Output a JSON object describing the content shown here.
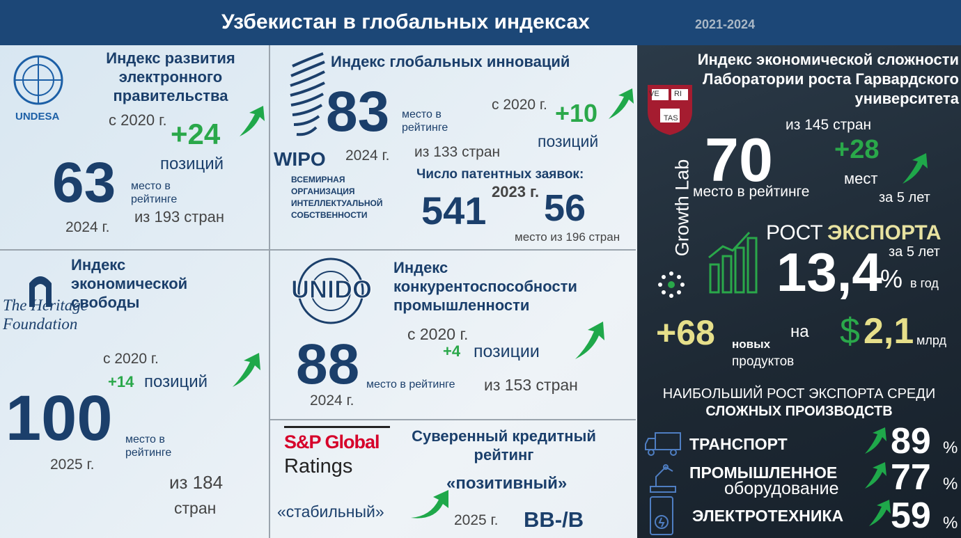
{
  "header": {
    "title": "Узбекистан в глобальных индексах",
    "period": "2021-2024"
  },
  "egov": {
    "logo": "UNDESA",
    "title": "Индекс развития электронного правительства",
    "since": "с 2020 г.",
    "change": "+24",
    "change_unit": "позиций",
    "rank": 63,
    "rank_label": "место в рейтинге",
    "year": "2024 г.",
    "of": "из 193 стран"
  },
  "innovation": {
    "logo": "WIPO",
    "logo_caption": "ВСЕМИРНАЯ ОРГАНИЗАЦИЯ ИНТЕЛЛЕКТУАЛЬНОЙ СОБСТВЕННОСТИ",
    "title": "Индекс глобальных инноваций",
    "rank": 83,
    "rank_label": "место в рейтинге",
    "year": "2024 г.",
    "of": "из 133 стран",
    "since": "с 2020 г.",
    "change": "+10",
    "change_unit": "позиций",
    "patents": {
      "title": "Число патентных заявок:",
      "count": 541,
      "year": "2023 г.",
      "rank": 56,
      "rank_label": "место из 196 стран"
    }
  },
  "freedom": {
    "logo": "The Heritage Foundation",
    "title": "Индекс экономической свободы",
    "since": "с 2020 г.",
    "change": "+14",
    "change_unit": "позиций",
    "rank": 100,
    "rank_label": "место в рейтинге",
    "year": "2025 г.",
    "of_prefix": "из 184",
    "of_suffix": "стран"
  },
  "industry": {
    "logo": "UNIDO",
    "title": "Индекс конкурентоспособности промышленности",
    "since": "с 2020 г.",
    "change": "+4",
    "change_unit": "позиции",
    "rank": 88,
    "rank_label": "место в рейтинге",
    "year": "2024 г.",
    "of": "из 153 стран"
  },
  "credit": {
    "logo_top": "S&P Global",
    "logo_bottom": "Ratings",
    "title": "Суверенный кредитный рейтинг",
    "from": "«стабильный»",
    "to": "«позитивный»",
    "year": "2025 г.",
    "rating": "BB-/B"
  },
  "complexity": {
    "title": "Индекс экономической сложности Лаборатории роста Гарвардского университета",
    "shield": [
      "VE",
      "RI",
      "TAS"
    ],
    "lab": "Growth Lab",
    "of": "из 145 стран",
    "rank": 70,
    "rank_label": "место в рейтинге",
    "change": "+28",
    "change_unit": "мест",
    "change_period": "за 5 лет",
    "export_label_a": "РОСТ",
    "export_label_b": "ЭКСПОРТА",
    "export_period": "за 5 лет",
    "export_growth": "13,4",
    "percent": "%",
    "export_unit": "в год",
    "products": "+68",
    "products_a": "новых",
    "products_b": "продуктов",
    "on": "на",
    "currency": "$",
    "amount": "2,1",
    "amount_unit": "млрд",
    "sectors_title_a": "НАИБОЛЬШИЙ РОСТ ЭКСПОРТА СРЕДИ",
    "sectors_title_b": "СЛОЖНЫХ ПРОИЗВОДСТВ",
    "sectors": [
      {
        "name": "ТРАНСПОРТ",
        "value": 89
      },
      {
        "name": "ПРОМЫШЛЕННОЕ",
        "name_2": "оборудование",
        "value": 77
      },
      {
        "name": "ЭЛЕКТРОТЕХНИКА",
        "value": 59
      }
    ]
  }
}
